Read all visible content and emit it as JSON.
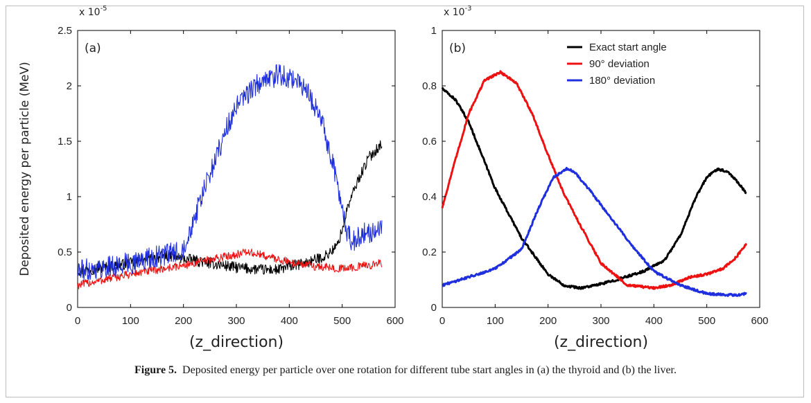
{
  "figure": {
    "caption_label": "Figure 5.",
    "caption_text": "Deposited energy per particle over one rotation for different tube start angles in (a) the thyroid and (b) the liver."
  },
  "chart_data": [
    {
      "type": "line",
      "panel_label": "(a)",
      "xlabel": "(z_direction)",
      "ylabel": "Deposited energy per particle (MeV)",
      "y_multiplier": "x 10",
      "y_exponent": "-5",
      "xlim": [
        0,
        600
      ],
      "ylim": [
        0,
        2.5
      ],
      "xticks": [
        0,
        100,
        200,
        300,
        400,
        500,
        600
      ],
      "yticks": [
        0,
        0.5,
        1,
        1.5,
        2,
        2.5
      ],
      "ytick_labels": [
        "0",
        "0.5",
        "1",
        "1.5",
        "2",
        "2.5"
      ],
      "grid": false,
      "legend": null,
      "series": [
        {
          "color": "#000000",
          "noise": 0.02,
          "x": [
            0,
            50,
            100,
            150,
            170,
            200,
            250,
            300,
            350,
            380,
            400,
            430,
            450,
            470,
            490,
            500,
            510,
            530,
            550,
            575
          ],
          "y": [
            0.33,
            0.36,
            0.4,
            0.45,
            0.47,
            0.44,
            0.4,
            0.36,
            0.34,
            0.34,
            0.37,
            0.4,
            0.43,
            0.47,
            0.55,
            0.7,
            0.9,
            1.15,
            1.35,
            1.48
          ]
        },
        {
          "color": "#ee1111",
          "noise": 0.015,
          "x": [
            0,
            50,
            100,
            150,
            200,
            250,
            300,
            320,
            350,
            400,
            450,
            500,
            550,
            575
          ],
          "y": [
            0.2,
            0.25,
            0.3,
            0.34,
            0.38,
            0.43,
            0.48,
            0.5,
            0.47,
            0.41,
            0.37,
            0.35,
            0.38,
            0.4
          ]
        },
        {
          "color": "#1f2fdd",
          "noise": 0.04,
          "x": [
            0,
            50,
            100,
            150,
            190,
            200,
            220,
            250,
            280,
            300,
            330,
            360,
            380,
            400,
            420,
            440,
            460,
            480,
            500,
            510,
            520,
            540,
            560,
            575
          ],
          "y": [
            0.33,
            0.36,
            0.4,
            0.46,
            0.5,
            0.55,
            0.8,
            1.2,
            1.6,
            1.8,
            1.98,
            2.06,
            2.1,
            2.08,
            2.02,
            1.9,
            1.7,
            1.35,
            0.9,
            0.66,
            0.6,
            0.66,
            0.7,
            0.72
          ]
        }
      ]
    },
    {
      "type": "line",
      "panel_label": "(b)",
      "xlabel": "(z_direction)",
      "ylabel": "",
      "y_multiplier": "x 10",
      "y_exponent": "-3",
      "xlim": [
        0,
        600
      ],
      "ylim": [
        0,
        1
      ],
      "xticks": [
        0,
        100,
        200,
        300,
        400,
        500,
        600
      ],
      "yticks": [
        0,
        0.2,
        0.4,
        0.6,
        0.8,
        1
      ],
      "ytick_labels": [
        "0",
        "0.2",
        "0.4",
        "0.6",
        "0.8",
        "1"
      ],
      "grid": false,
      "legend": "top-right",
      "series": [
        {
          "name": "Exact start angle",
          "color": "#000000",
          "noise": 0.004,
          "x": [
            0,
            25,
            50,
            100,
            150,
            200,
            230,
            260,
            290,
            330,
            380,
            420,
            450,
            480,
            500,
            520,
            540,
            560,
            575
          ],
          "y": [
            0.79,
            0.75,
            0.67,
            0.43,
            0.25,
            0.12,
            0.08,
            0.07,
            0.08,
            0.1,
            0.13,
            0.17,
            0.26,
            0.4,
            0.47,
            0.5,
            0.49,
            0.45,
            0.41
          ]
        },
        {
          "name": "90° deviation",
          "color": "#ee1111",
          "noise": 0.004,
          "x": [
            0,
            20,
            50,
            80,
            110,
            140,
            170,
            200,
            230,
            260,
            300,
            350,
            400,
            430,
            470,
            500,
            530,
            555,
            575
          ],
          "y": [
            0.36,
            0.5,
            0.7,
            0.82,
            0.85,
            0.81,
            0.7,
            0.55,
            0.41,
            0.3,
            0.16,
            0.08,
            0.07,
            0.08,
            0.11,
            0.12,
            0.14,
            0.18,
            0.23
          ]
        },
        {
          "name": "180° deviation",
          "color": "#1f2fdd",
          "noise": 0.004,
          "x": [
            0,
            50,
            100,
            150,
            180,
            210,
            235,
            250,
            280,
            320,
            360,
            400,
            450,
            500,
            540,
            560,
            575
          ],
          "y": [
            0.08,
            0.11,
            0.14,
            0.21,
            0.35,
            0.47,
            0.5,
            0.49,
            0.42,
            0.32,
            0.22,
            0.13,
            0.08,
            0.05,
            0.045,
            0.045,
            0.05
          ]
        }
      ]
    }
  ]
}
